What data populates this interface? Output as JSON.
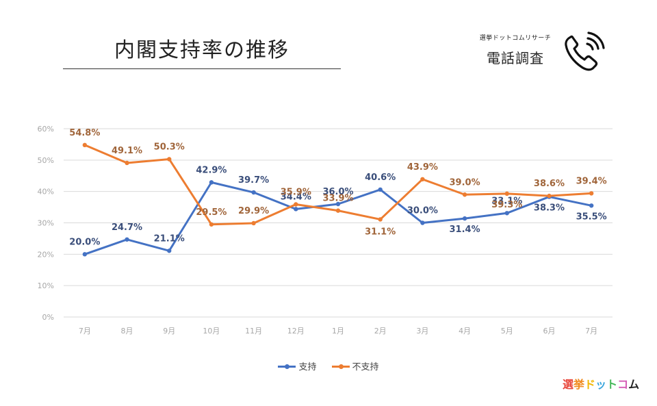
{
  "header": {
    "title": "内閣支持率の推移",
    "source_small": "選挙ドットコムリサーチ",
    "source_main": "電話調査"
  },
  "icons": {
    "phone": "phone-call-icon"
  },
  "logo": {
    "chars": [
      "選",
      "挙",
      "ド",
      "ッ",
      "ト",
      "コ",
      "ム"
    ]
  },
  "colors": {
    "support": "#4472c4",
    "nonsupport": "#ed7d31",
    "support_label": "#3a4e7a",
    "nonsupport_label": "#a0653a",
    "grid": "#d9d9d9",
    "tick": "#a6a6a6"
  },
  "chart_data": {
    "type": "line",
    "title": "内閣支持率の推移",
    "categories": [
      "7月",
      "8月",
      "9月",
      "10月",
      "11月",
      "12月",
      "1月",
      "2月",
      "3月",
      "4月",
      "5月",
      "6月",
      "7月"
    ],
    "y_ticks": [
      "0%",
      "10%",
      "20%",
      "30%",
      "40%",
      "50%",
      "60%"
    ],
    "ylim": [
      0,
      60
    ],
    "grid": true,
    "legend_position": "bottom",
    "series": [
      {
        "name": "支持",
        "values": [
          20.0,
          24.7,
          21.1,
          42.9,
          39.7,
          34.4,
          36.0,
          40.6,
          30.0,
          31.4,
          33.1,
          38.3,
          35.5
        ],
        "labels": [
          "20.0%",
          "24.7%",
          "21.1%",
          "42.9%",
          "39.7%",
          "34.4%",
          "36.0%",
          "40.6%",
          "30.0%",
          "31.4%",
          "33.1%",
          "38.3%",
          "35.5%"
        ]
      },
      {
        "name": "不支持",
        "values": [
          54.8,
          49.1,
          50.3,
          29.5,
          29.9,
          35.9,
          33.9,
          31.1,
          43.9,
          39.0,
          39.3,
          38.6,
          39.4
        ],
        "labels": [
          "54.8%",
          "49.1%",
          "50.3%",
          "29.5%",
          "29.9%",
          "35.9%",
          "33.9%",
          "31.1%",
          "43.9%",
          "39.0%",
          "39.3%",
          "38.6%",
          "39.4%"
        ]
      }
    ]
  }
}
